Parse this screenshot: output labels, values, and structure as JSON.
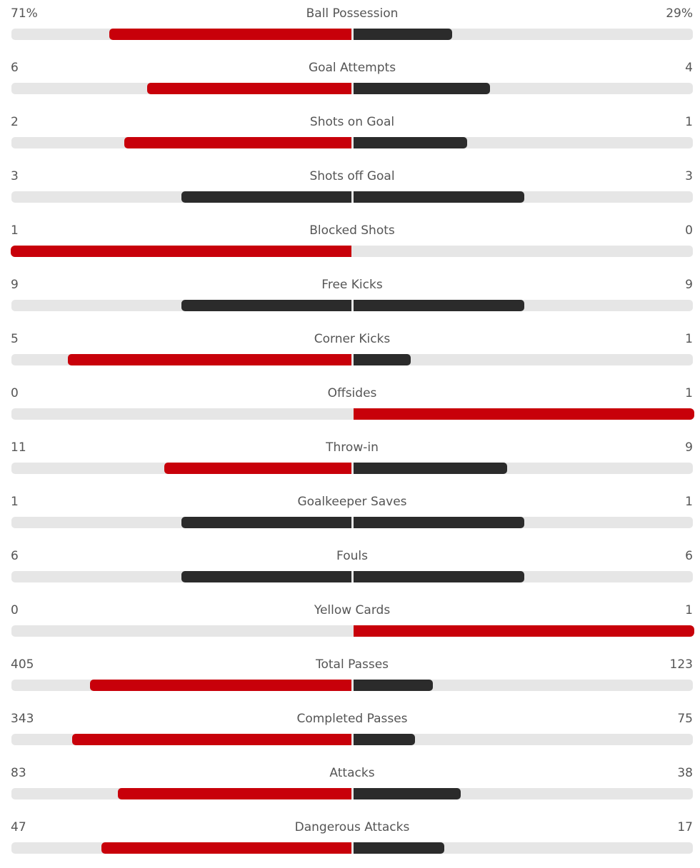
{
  "colors": {
    "leader": "#c8000a",
    "trailer": "#2b2b2b",
    "track": "#e6e6e6",
    "text": "#555555"
  },
  "stats": [
    {
      "label": "Ball Possession",
      "home": "71%",
      "away": "29%",
      "home_value": 71,
      "away_value": 29
    },
    {
      "label": "Goal Attempts",
      "home": "6",
      "away": "4",
      "home_value": 6,
      "away_value": 4
    },
    {
      "label": "Shots on Goal",
      "home": "2",
      "away": "1",
      "home_value": 2,
      "away_value": 1
    },
    {
      "label": "Shots off Goal",
      "home": "3",
      "away": "3",
      "home_value": 3,
      "away_value": 3
    },
    {
      "label": "Blocked Shots",
      "home": "1",
      "away": "0",
      "home_value": 1,
      "away_value": 0
    },
    {
      "label": "Free Kicks",
      "home": "9",
      "away": "9",
      "home_value": 9,
      "away_value": 9
    },
    {
      "label": "Corner Kicks",
      "home": "5",
      "away": "1",
      "home_value": 5,
      "away_value": 1
    },
    {
      "label": "Offsides",
      "home": "0",
      "away": "1",
      "home_value": 0,
      "away_value": 1
    },
    {
      "label": "Throw-in",
      "home": "11",
      "away": "9",
      "home_value": 11,
      "away_value": 9
    },
    {
      "label": "Goalkeeper Saves",
      "home": "1",
      "away": "1",
      "home_value": 1,
      "away_value": 1
    },
    {
      "label": "Fouls",
      "home": "6",
      "away": "6",
      "home_value": 6,
      "away_value": 6
    },
    {
      "label": "Yellow Cards",
      "home": "0",
      "away": "1",
      "home_value": 0,
      "away_value": 1
    },
    {
      "label": "Total Passes",
      "home": "405",
      "away": "123",
      "home_value": 405,
      "away_value": 123
    },
    {
      "label": "Completed Passes",
      "home": "343",
      "away": "75",
      "home_value": 343,
      "away_value": 75
    },
    {
      "label": "Attacks",
      "home": "83",
      "away": "38",
      "home_value": 83,
      "away_value": 38
    },
    {
      "label": "Dangerous Attacks",
      "home": "47",
      "away": "17",
      "home_value": 47,
      "away_value": 17
    }
  ]
}
